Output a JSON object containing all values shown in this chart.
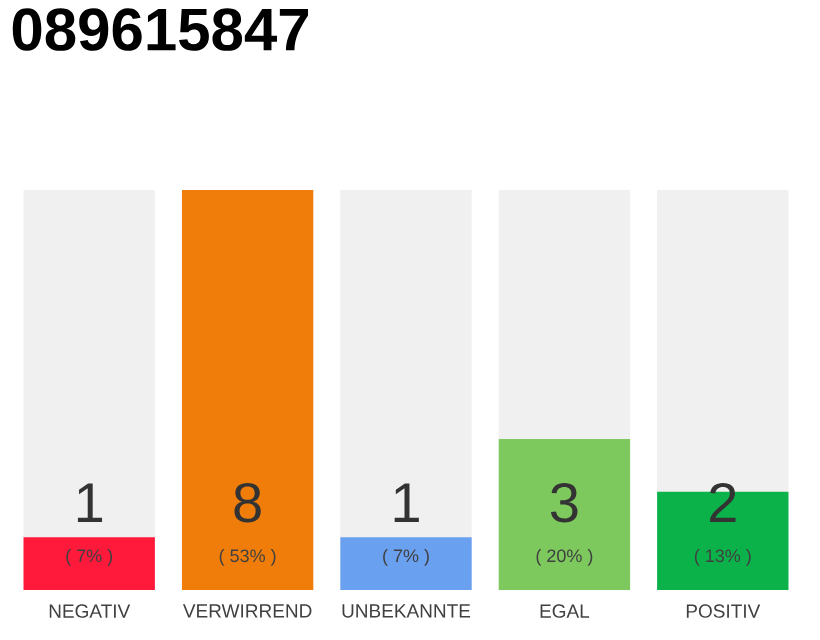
{
  "chart_data": {
    "type": "bar",
    "title": "089615847",
    "categories": [
      "NEGATIV",
      "VERWIRREND",
      "UNBEKANNTE",
      "EGAL",
      "POSITIV"
    ],
    "values": [
      7,
      53,
      7,
      20,
      13
    ],
    "colors": [
      "#ff1a3c",
      "#f07d0a",
      "#6aa0f0",
      "#7dc95e",
      "#0bb24a"
    ],
    "value_labels": [
      "( 7% )",
      "( 53% )",
      "( 7% )",
      "( 20% )",
      "( 13% )"
    ],
    "annotations": [
      "1",
      "8",
      "1",
      "3",
      "2"
    ],
    "tick_labels": "x"
  }
}
